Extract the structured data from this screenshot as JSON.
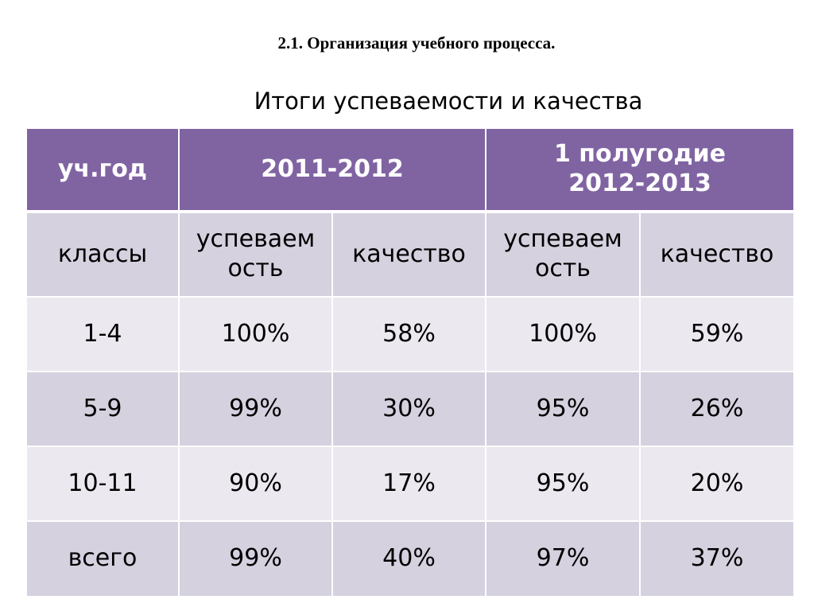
{
  "slide": {
    "section_heading": "2.1. Организация учебного процесса.",
    "table_title": "Итоги успеваемости и качества"
  },
  "table": {
    "header": {
      "col0": "уч.год",
      "period1": "2011-2012",
      "period2_line1": "1 полугодие",
      "period2_line2": "2012-2013"
    },
    "subheader": {
      "col0": "классы",
      "p1_progress_line1": "успеваем",
      "p1_progress_line2": "ость",
      "p1_quality": "качество",
      "p2_progress_line1": "успеваем",
      "p2_progress_line2": "ость",
      "p2_quality": "качество"
    },
    "rows": [
      {
        "label": "1-4",
        "p1_progress": "100%",
        "p1_quality": "58%",
        "p2_progress": "100%",
        "p2_quality": "59%"
      },
      {
        "label": "5-9",
        "p1_progress": "99%",
        "p1_quality": "30%",
        "p2_progress": "95%",
        "p2_quality": "26%"
      },
      {
        "label": "10-11",
        "p1_progress": "90%",
        "p1_quality": "17%",
        "p2_progress": "95%",
        "p2_quality": "20%"
      },
      {
        "label": "всего",
        "p1_progress": "99%",
        "p1_quality": "40%",
        "p2_progress": "97%",
        "p2_quality": "37%"
      }
    ]
  },
  "colors": {
    "header_bg": "#8064a2",
    "band_dark": "#d5d1df",
    "band_light": "#ebe8ef"
  }
}
